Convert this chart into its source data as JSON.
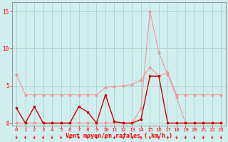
{
  "x": [
    0,
    1,
    2,
    3,
    4,
    5,
    6,
    7,
    8,
    9,
    10,
    11,
    12,
    13,
    14,
    15,
    16,
    17,
    18,
    19,
    20,
    21,
    22,
    23
  ],
  "line_avg_y": [
    6.5,
    3.8,
    3.8,
    3.8,
    3.8,
    3.8,
    3.8,
    3.8,
    3.8,
    3.8,
    4.8,
    4.9,
    5.0,
    5.2,
    5.8,
    7.5,
    6.3,
    6.8,
    3.8,
    3.8,
    3.8,
    3.8,
    3.8,
    3.8
  ],
  "line_gust_y": [
    0.0,
    0.0,
    0.0,
    0.0,
    0.0,
    0.0,
    0.0,
    0.0,
    0.0,
    0.0,
    0.0,
    0.0,
    0.0,
    0.0,
    2.0,
    15.0,
    9.5,
    6.5,
    3.5,
    0.0,
    0.0,
    0.0,
    0.0,
    0.0
  ],
  "line_wind_y": [
    2.0,
    0.0,
    2.2,
    0.0,
    0.0,
    0.0,
    0.0,
    2.2,
    1.5,
    0.0,
    3.8,
    0.2,
    0.0,
    0.0,
    0.5,
    6.3,
    6.3,
    0.0,
    0.0,
    0.0,
    0.0,
    0.0,
    0.0,
    0.0
  ],
  "color_light": "#ee9999",
  "color_dark": "#cc0000",
  "bg_color": "#d0eeee",
  "grid_color": "#aacccc",
  "xlabel": "Vent moyen/en rafales ( km/h )",
  "yticks": [
    0,
    5,
    10,
    15
  ],
  "ylim": [
    -0.3,
    16.2
  ],
  "xlim": [
    -0.5,
    23.5
  ]
}
